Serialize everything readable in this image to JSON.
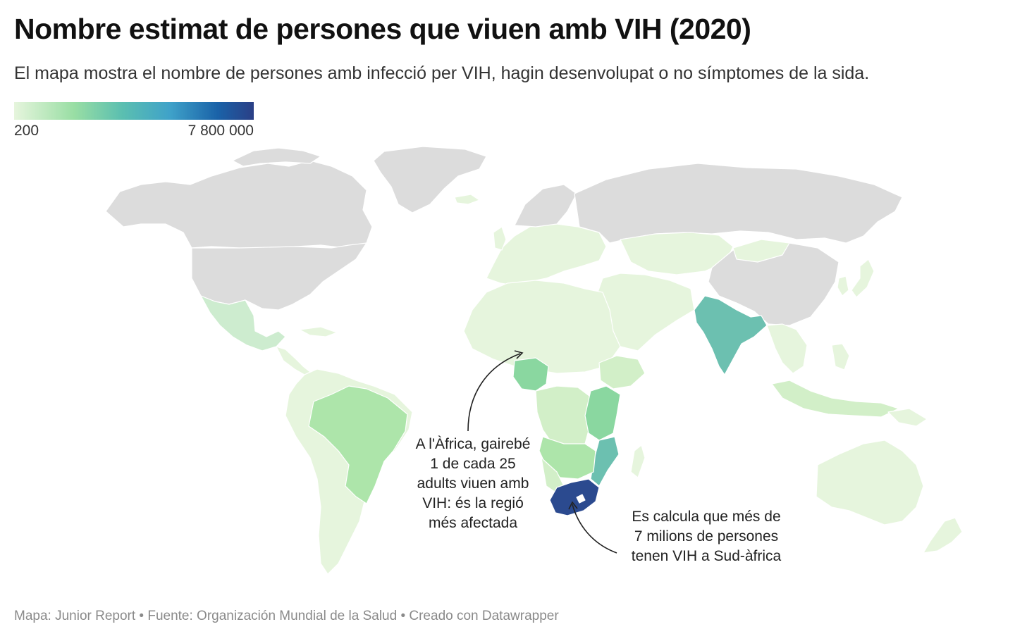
{
  "header": {
    "title": "Nombre estimat de persones que viuen amb VIH (2020)",
    "subtitle": "El mapa mostra el nombre de persones amb infecció per VIH, hagin desenvolupat o no símptomes de la sida."
  },
  "legend": {
    "min_label": "200",
    "max_label": "7 800 000",
    "colors": [
      "#e6f5dd",
      "#99dea4",
      "#5bbfb0",
      "#3fa2c9",
      "#1a62a8",
      "#2b3f86"
    ]
  },
  "map": {
    "no_data_color": "#dcdcdc",
    "border_color": "#ffffff",
    "regions": [
      {
        "name": "North America",
        "value_level": "no data"
      },
      {
        "name": "Greenland",
        "value_level": "no data"
      },
      {
        "name": "Russia",
        "value_level": "no data"
      },
      {
        "name": "China",
        "value_level": "no data"
      },
      {
        "name": "Mexico and Central America",
        "value_level": "low"
      },
      {
        "name": "South America",
        "value_level": "low"
      },
      {
        "name": "Brazil",
        "value_level": "medium-low"
      },
      {
        "name": "Europe",
        "value_level": "low"
      },
      {
        "name": "North Africa and Middle East",
        "value_level": "low"
      },
      {
        "name": "Nigeria",
        "value_level": "medium"
      },
      {
        "name": "East Africa",
        "value_level": "medium"
      },
      {
        "name": "Mozambique",
        "value_level": "medium-high"
      },
      {
        "name": "South Africa",
        "value_level": "highest"
      },
      {
        "name": "India",
        "value_level": "medium-high"
      },
      {
        "name": "Southeast Asia",
        "value_level": "low"
      },
      {
        "name": "Australia",
        "value_level": "low"
      }
    ]
  },
  "annotations": {
    "africa_lines": [
      "A l'Àfrica, gairebé",
      "1 de cada 25",
      "adults viuen amb",
      "VIH: és la regió",
      "més afectada"
    ],
    "south_africa_lines": [
      "Es calcula que més de",
      "7 milions de persones",
      "tenen VIH a Sud-àfrica"
    ]
  },
  "footer": {
    "credits": "Mapa: Junior Report • Fuente: Organización Mundial de la Salud • Creado con Datawrapper"
  }
}
